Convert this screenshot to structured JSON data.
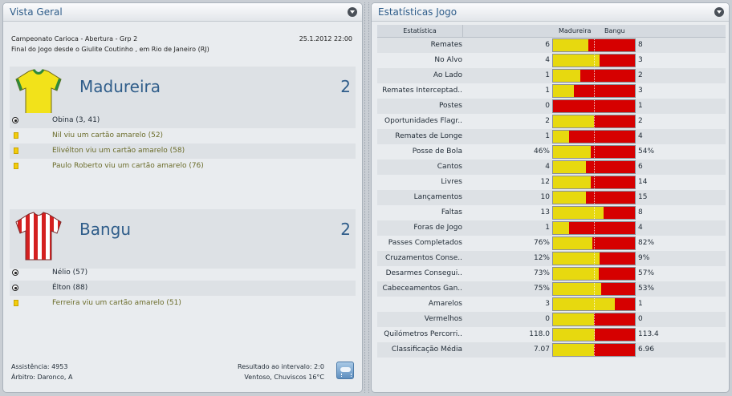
{
  "overview": {
    "title": "Vista Geral",
    "competition": "Campeonato Carioca - Abertura - Grp 2",
    "datetime": "25.1.2012 22:00",
    "venue_line": "Final do Jogo desde o Giulite Coutinho , em Rio de Janeiro (RJ)",
    "home": {
      "name": "Madureira",
      "score": "2",
      "events": [
        {
          "type": "goal",
          "text": "Obina (3, 41)"
        },
        {
          "type": "card",
          "text": "Nil viu um cartão amarelo (52)"
        },
        {
          "type": "card",
          "text": "Elivélton viu um cartão amarelo (58)"
        },
        {
          "type": "card",
          "text": "Paulo Roberto viu um cartão amarelo (76)"
        }
      ]
    },
    "away": {
      "name": "Bangu",
      "score": "2",
      "events": [
        {
          "type": "goal",
          "text": "Nélio (57)"
        },
        {
          "type": "goal",
          "text": "Élton (88)"
        },
        {
          "type": "card",
          "text": "Ferreira viu um cartão amarelo (51)"
        }
      ]
    },
    "attendance": "Assistência: 4953",
    "referee": "Árbitro: Daronco, A",
    "halftime": "Resultado ao intervalo: 2:0",
    "weather": "Ventoso, Chuviscos 16°C"
  },
  "stats": {
    "title": "Estatísticas Jogo",
    "header_stat": "Estatística",
    "header_home": "Madureira",
    "header_away": "Bangu",
    "colors": {
      "home": "#e7d90f",
      "away": "#d60000"
    },
    "rows": [
      {
        "label": "Remates",
        "home": "6",
        "away": "8",
        "home_share": 0.43
      },
      {
        "label": "No Alvo",
        "home": "4",
        "away": "3",
        "home_share": 0.57
      },
      {
        "label": "Ao Lado",
        "home": "1",
        "away": "2",
        "home_share": 0.33
      },
      {
        "label": "Remates Interceptad..",
        "home": "1",
        "away": "3",
        "home_share": 0.25
      },
      {
        "label": "Postes",
        "home": "0",
        "away": "1",
        "home_share": 0.0
      },
      {
        "label": "Oportunidades Flagr..",
        "home": "2",
        "away": "2",
        "home_share": 0.5
      },
      {
        "label": "Remates de Longe",
        "home": "1",
        "away": "4",
        "home_share": 0.2
      },
      {
        "label": "Posse de Bola",
        "home": "46%",
        "away": "54%",
        "home_share": 0.46
      },
      {
        "label": "Cantos",
        "home": "4",
        "away": "6",
        "home_share": 0.4
      },
      {
        "label": "Livres",
        "home": "12",
        "away": "14",
        "home_share": 0.46
      },
      {
        "label": "Lançamentos",
        "home": "10",
        "away": "15",
        "home_share": 0.4
      },
      {
        "label": "Faltas",
        "home": "13",
        "away": "8",
        "home_share": 0.62
      },
      {
        "label": "Foras de Jogo",
        "home": "1",
        "away": "4",
        "home_share": 0.2
      },
      {
        "label": "Passes Completados",
        "home": "76%",
        "away": "82%",
        "home_share": 0.48
      },
      {
        "label": "Cruzamentos Conse..",
        "home": "12%",
        "away": "9%",
        "home_share": 0.57
      },
      {
        "label": "Desarmes Consegui..",
        "home": "73%",
        "away": "57%",
        "home_share": 0.56
      },
      {
        "label": "Cabeceamentos Gan..",
        "home": "75%",
        "away": "53%",
        "home_share": 0.59
      },
      {
        "label": "Amarelos",
        "home": "3",
        "away": "1",
        "home_share": 0.75
      },
      {
        "label": "Vermelhos",
        "home": "0",
        "away": "0",
        "home_share": 0.5
      },
      {
        "label": "Quilómetros Percorri..",
        "home": "118.0",
        "away": "113.4",
        "home_share": 0.51
      },
      {
        "label": "Classificação Média",
        "home": "7.07",
        "away": "6.96",
        "home_share": 0.5
      }
    ]
  }
}
